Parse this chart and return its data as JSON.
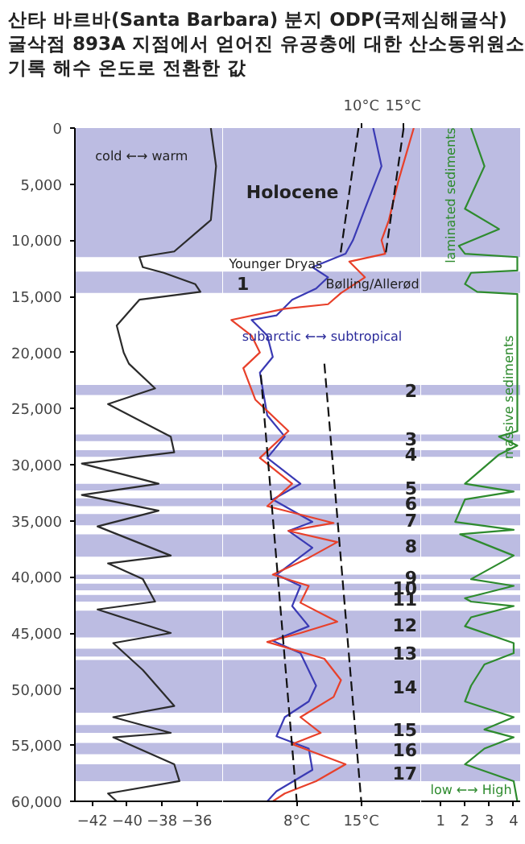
{
  "chart_data": [
    {
      "type": "line",
      "title": "산타 바르바(Santa Barbara) 분지 ODP(국제심해굴삭) 굴삭점 893A 지점에서 얻어진 유공충에 대한 산소동위원소 기록 해수 온도로 전환한 값",
      "xlim": [
        -43.0,
        -34.5
      ],
      "xticks": [
        -42,
        -40,
        -38,
        -36
      ],
      "ylim": [
        60000,
        0
      ],
      "yticks": [
        0,
        {
          "value": 5000,
          "label": "5,000"
        },
        {
          "value": 10000,
          "label": "10,000"
        },
        {
          "value": 15000,
          "label": "15,000"
        },
        {
          "value": 20000,
          "label": "20,000"
        },
        {
          "value": 25000,
          "label": "25,000"
        },
        {
          "value": 30000,
          "label": "30,000"
        },
        {
          "value": 35000,
          "label": "35,000"
        },
        {
          "value": 40000,
          "label": "40,000"
        },
        {
          "value": 45000,
          "label": "45,000"
        },
        {
          "value": 50000,
          "label": "50,000"
        },
        {
          "value": 55000,
          "label": "55,000"
        },
        {
          "value": 60000,
          "label": "60,000"
        }
      ],
      "series": [
        {
          "color": "#2b2b2b",
          "x": [
            -35.2,
            -34.9,
            -35.2,
            -37.3,
            -39.3,
            -39.1,
            -37.9,
            -36.1,
            -35.8,
            -39.3,
            -40.6,
            -40.2,
            -39.9,
            -38.4,
            -41.1,
            -37.5,
            -37.3,
            -42.6,
            -38.2,
            -42.6,
            -38.2,
            -41.7,
            -37.5,
            -41.1,
            -39.1,
            -38.4,
            -41.7,
            -37.5,
            -40.8,
            -39.1,
            -37.3,
            -40.8,
            -37.5,
            -40.8,
            -37.3,
            -37.0,
            -41.1,
            -40.6
          ],
          "values": [
            0,
            3400,
            8200,
            11000,
            11500,
            12400,
            12900,
            13900,
            14600,
            15300,
            17600,
            20000,
            21000,
            23200,
            24600,
            27500,
            28900,
            29900,
            31700,
            32700,
            34100,
            35500,
            38100,
            38800,
            40200,
            42200,
            42900,
            45000,
            45900,
            48300,
            51500,
            52500,
            53900,
            54300,
            56700,
            58200,
            59300,
            60000
          ]
        }
      ],
      "bands": [
        {
          "axis": "y",
          "from": 0,
          "to": 11500,
          "color": "#bcbce2"
        },
        {
          "axis": "y",
          "from": 12800,
          "to": 14700,
          "color": "#bcbce2"
        },
        {
          "axis": "y",
          "from": 22900,
          "to": 23800,
          "color": "#bcbce2"
        },
        {
          "axis": "y",
          "from": 27300,
          "to": 27900,
          "color": "#bcbce2"
        },
        {
          "axis": "y",
          "from": 28700,
          "to": 29300,
          "color": "#bcbce2"
        },
        {
          "axis": "y",
          "from": 31700,
          "to": 32300,
          "color": "#bcbce2"
        },
        {
          "axis": "y",
          "from": 33000,
          "to": 33700,
          "color": "#bcbce2"
        },
        {
          "axis": "y",
          "from": 34400,
          "to": 35400,
          "color": "#bcbce2"
        },
        {
          "axis": "y",
          "from": 36200,
          "to": 38200,
          "color": "#bcbce2"
        },
        {
          "axis": "y",
          "from": 39800,
          "to": 40200,
          "color": "#bcbce2"
        },
        {
          "axis": "y",
          "from": 40600,
          "to": 41200,
          "color": "#bcbce2"
        },
        {
          "axis": "y",
          "from": 41600,
          "to": 42200,
          "color": "#bcbce2"
        },
        {
          "axis": "y",
          "from": 43000,
          "to": 45400,
          "color": "#bcbce2"
        },
        {
          "axis": "y",
          "from": 46400,
          "to": 47100,
          "color": "#bcbce2"
        },
        {
          "axis": "y",
          "from": 47400,
          "to": 52100,
          "color": "#bcbce2"
        },
        {
          "axis": "y",
          "from": 53200,
          "to": 53900,
          "color": "#bcbce2"
        },
        {
          "axis": "y",
          "from": 54800,
          "to": 55800,
          "color": "#bcbce2"
        },
        {
          "axis": "y",
          "from": 56700,
          "to": 58200,
          "color": "#bcbce2"
        }
      ],
      "annotations": [
        "cold ←→ warm"
      ]
    },
    {
      "type": "line",
      "tick_labels": "x",
      "xlim": [
        0,
        21.5
      ],
      "xticks": [
        {
          "value": 8,
          "label": "8°C"
        },
        {
          "value": 15,
          "label": "15°C"
        }
      ],
      "x2lim": [
        -6.2,
        17.0
      ],
      "x2ticks": [
        {
          "value": 10,
          "label": "10°C"
        },
        {
          "value": 15,
          "label": "15°C"
        }
      ],
      "ylim": [
        60000,
        0
      ],
      "series": [
        {
          "color": "#3a3ab4",
          "x": [
            16.3,
            17.2,
            15.4,
            14.1,
            13.3,
            9.7,
            11.4,
            10.1,
            7.5,
            5.8,
            3.1,
            4.8,
            5.4,
            4.0,
            4.8,
            6.7,
            4.8,
            8.4,
            5.4,
            9.7,
            7.1,
            9.7,
            5.8,
            8.4,
            7.5,
            9.3,
            5.4,
            8.4,
            10.1,
            9.3,
            6.7,
            5.8,
            9.3,
            9.7,
            5.8,
            4.8
          ],
          "values": [
            0,
            3400,
            7200,
            10000,
            11200,
            12400,
            13300,
            14300,
            15300,
            16700,
            17100,
            18500,
            20400,
            21800,
            25600,
            27500,
            29400,
            31700,
            33100,
            35100,
            35900,
            37400,
            39800,
            40800,
            42600,
            44400,
            45700,
            46800,
            49700,
            51100,
            52500,
            54200,
            55300,
            57200,
            59100,
            60000
          ]
        },
        {
          "color": "#e8402a",
          "x": [
            20.7,
            19.0,
            18.0,
            17.2,
            17.6,
            13.7,
            15.4,
            12.8,
            11.4,
            6.7,
            0.9,
            3.1,
            4.0,
            2.2,
            3.5,
            7.1,
            4.0,
            7.5,
            4.8,
            12.0,
            7.1,
            12.4,
            9.3,
            5.4,
            9.3,
            8.4,
            12.4,
            8.4,
            4.8,
            11.0,
            12.8,
            12.0,
            8.4,
            10.6,
            7.5,
            13.3,
            10.1,
            6.7,
            5.4
          ],
          "values": [
            0,
            4800,
            8200,
            10000,
            11200,
            11900,
            13300,
            14700,
            15700,
            16100,
            17100,
            18500,
            20000,
            21400,
            24200,
            27000,
            29400,
            31700,
            33700,
            35200,
            35900,
            36900,
            38300,
            39800,
            40800,
            42300,
            44000,
            45000,
            45800,
            47300,
            49200,
            50700,
            52500,
            53900,
            54900,
            56700,
            58200,
            59300,
            60000
          ]
        },
        {
          "color": "#111111",
          "line_style": "dashed",
          "x": [
            14.7,
            12.7
          ],
          "values": [
            0,
            11500
          ]
        },
        {
          "color": "#111111",
          "line_style": "dashed",
          "x": [
            19.6,
            17.6
          ],
          "values": [
            0,
            11500
          ]
        },
        {
          "color": "#111111",
          "line_style": "dashed",
          "x": [
            4.1,
            8
          ],
          "values": [
            22000,
            60000
          ]
        },
        {
          "color": "#111111",
          "line_style": "dashed",
          "x": [
            11.0,
            15
          ],
          "values": [
            21000,
            60000
          ]
        }
      ],
      "bands": [
        {
          "axis": "y",
          "from": 0,
          "to": 11500,
          "label": "Holocene",
          "color": "#bcbce2"
        },
        {
          "axis": "y",
          "from": 12800,
          "to": 14700,
          "label": "1",
          "color": "#bcbce2"
        },
        {
          "axis": "y",
          "from": 22900,
          "to": 23800,
          "label": "2",
          "color": "#bcbce2"
        },
        {
          "axis": "y",
          "from": 27300,
          "to": 27900,
          "label": "3",
          "color": "#bcbce2"
        },
        {
          "axis": "y",
          "from": 28700,
          "to": 29300,
          "label": "4",
          "color": "#bcbce2"
        },
        {
          "axis": "y",
          "from": 31700,
          "to": 32300,
          "label": "5",
          "color": "#bcbce2"
        },
        {
          "axis": "y",
          "from": 33000,
          "to": 33700,
          "label": "6",
          "color": "#bcbce2"
        },
        {
          "axis": "y",
          "from": 34400,
          "to": 35400,
          "label": "7",
          "color": "#bcbce2"
        },
        {
          "axis": "y",
          "from": 36200,
          "to": 38200,
          "label": "8",
          "color": "#bcbce2"
        },
        {
          "axis": "y",
          "from": 39800,
          "to": 40200,
          "label": "9",
          "color": "#bcbce2"
        },
        {
          "axis": "y",
          "from": 40600,
          "to": 41200,
          "label": "10",
          "color": "#bcbce2"
        },
        {
          "axis": "y",
          "from": 41600,
          "to": 42200,
          "label": "11",
          "color": "#bcbce2"
        },
        {
          "axis": "y",
          "from": 43000,
          "to": 45400,
          "label": "12",
          "color": "#bcbce2"
        },
        {
          "axis": "y",
          "from": 46400,
          "to": 47100,
          "label": "13",
          "color": "#bcbce2"
        },
        {
          "axis": "y",
          "from": 47400,
          "to": 52100,
          "label": "14",
          "color": "#bcbce2"
        },
        {
          "axis": "y",
          "from": 53200,
          "to": 53900,
          "label": "15",
          "color": "#bcbce2"
        },
        {
          "axis": "y",
          "from": 54800,
          "to": 55800,
          "label": "16",
          "color": "#bcbce2"
        },
        {
          "axis": "y",
          "from": 56700,
          "to": 58200,
          "label": "17",
          "color": "#bcbce2"
        }
      ],
      "annotations": [
        "Younger Dryas",
        "Bølling/Allerød",
        "subarctic ←→ subtropical"
      ]
    },
    {
      "type": "line",
      "tick_labels": "x",
      "xlim": [
        0.2,
        4.3
      ],
      "xticks": [
        1,
        2,
        3,
        4
      ],
      "ylim": [
        60000,
        0
      ],
      "series": [
        {
          "color": "#2e8b2e",
          "x": [
            2.25,
            2.8,
            2.0,
            3.4,
            1.75,
            2.0,
            4.15,
            4.15,
            2.25,
            2.0,
            2.5,
            4.15,
            4.15,
            3.4,
            4.15,
            3.4,
            2.0,
            4.0,
            2.0,
            1.6,
            4.0,
            1.8,
            4.0,
            2.25,
            4.0,
            2.0,
            2.25,
            4.0,
            2.25,
            2.0,
            4.0,
            4.0,
            2.8,
            2.25,
            2.0,
            4.0,
            2.8,
            4.0,
            2.8,
            2.0,
            4.0,
            4.15
          ],
          "values": [
            0,
            3400,
            7200,
            9000,
            10500,
            11200,
            11500,
            12700,
            12900,
            13900,
            14600,
            14800,
            27000,
            27500,
            28300,
            29100,
            31700,
            32400,
            33100,
            35100,
            35800,
            36200,
            38100,
            40200,
            40800,
            41900,
            42200,
            42600,
            43600,
            44400,
            45900,
            46800,
            47800,
            49700,
            51100,
            52500,
            53600,
            54300,
            55300,
            56700,
            58200,
            60000
          ]
        }
      ],
      "bands": [
        {
          "axis": "y",
          "from": 0,
          "to": 11500,
          "color": "#bcbce2"
        },
        {
          "axis": "y",
          "from": 12800,
          "to": 14700,
          "color": "#bcbce2"
        },
        {
          "axis": "y",
          "from": 22900,
          "to": 23800,
          "color": "#bcbce2"
        },
        {
          "axis": "y",
          "from": 27300,
          "to": 27900,
          "color": "#bcbce2"
        },
        {
          "axis": "y",
          "from": 28700,
          "to": 29300,
          "color": "#bcbce2"
        },
        {
          "axis": "y",
          "from": 31700,
          "to": 32300,
          "color": "#bcbce2"
        },
        {
          "axis": "y",
          "from": 33000,
          "to": 33700,
          "color": "#bcbce2"
        },
        {
          "axis": "y",
          "from": 34400,
          "to": 35400,
          "color": "#bcbce2"
        },
        {
          "axis": "y",
          "from": 36200,
          "to": 38200,
          "color": "#bcbce2"
        },
        {
          "axis": "y",
          "from": 39800,
          "to": 40200,
          "color": "#bcbce2"
        },
        {
          "axis": "y",
          "from": 40600,
          "to": 41200,
          "color": "#bcbce2"
        },
        {
          "axis": "y",
          "from": 41600,
          "to": 42200,
          "color": "#bcbce2"
        },
        {
          "axis": "y",
          "from": 43000,
          "to": 45400,
          "color": "#bcbce2"
        },
        {
          "axis": "y",
          "from": 46400,
          "to": 47100,
          "color": "#bcbce2"
        },
        {
          "axis": "y",
          "from": 47400,
          "to": 52100,
          "color": "#bcbce2"
        },
        {
          "axis": "y",
          "from": 53200,
          "to": 53900,
          "color": "#bcbce2"
        },
        {
          "axis": "y",
          "from": 54800,
          "to": 55800,
          "color": "#bcbce2"
        },
        {
          "axis": "y",
          "from": 56700,
          "to": 58200,
          "color": "#bcbce2"
        }
      ],
      "annotations": [
        "laminated sediments",
        "massive sediments",
        "low ←→ High"
      ]
    }
  ]
}
